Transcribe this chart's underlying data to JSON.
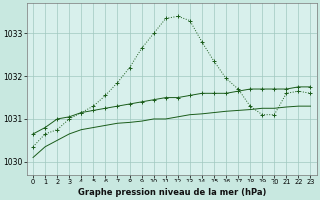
{
  "title": "Graphe pression niveau de la mer (hPa)",
  "background_color": "#c8e8e0",
  "plot_bg_color": "#d8f0ec",
  "grid_color": "#a0c8c0",
  "line_color": "#1a5c1a",
  "xlim": [
    -0.5,
    23.5
  ],
  "ylim": [
    1029.7,
    1033.7
  ],
  "yticks": [
    1030,
    1031,
    1032,
    1033
  ],
  "xticks": [
    0,
    1,
    2,
    3,
    4,
    5,
    6,
    7,
    8,
    9,
    10,
    11,
    12,
    13,
    14,
    15,
    16,
    17,
    18,
    19,
    20,
    21,
    22,
    23
  ],
  "series1": [
    1030.35,
    1030.65,
    1030.75,
    1031.0,
    1031.15,
    1031.3,
    1031.55,
    1031.85,
    1032.2,
    1032.65,
    1033.0,
    1033.35,
    1033.4,
    1033.3,
    1032.8,
    1032.35,
    1031.95,
    1031.7,
    1031.3,
    1031.1,
    1031.1,
    1031.6,
    1031.65,
    1031.6
  ],
  "series2": [
    1030.65,
    1030.8,
    1031.0,
    1031.05,
    1031.15,
    1031.2,
    1031.25,
    1031.3,
    1031.35,
    1031.4,
    1031.45,
    1031.5,
    1031.5,
    1031.55,
    1031.6,
    1031.6,
    1031.6,
    1031.65,
    1031.7,
    1031.7,
    1031.7,
    1031.7,
    1031.75,
    1031.75
  ],
  "series3": [
    1030.1,
    1030.35,
    1030.5,
    1030.65,
    1030.75,
    1030.8,
    1030.85,
    1030.9,
    1030.92,
    1030.95,
    1031.0,
    1031.0,
    1031.05,
    1031.1,
    1031.12,
    1031.15,
    1031.18,
    1031.2,
    1031.22,
    1031.25,
    1031.25,
    1031.28,
    1031.3,
    1031.3
  ]
}
